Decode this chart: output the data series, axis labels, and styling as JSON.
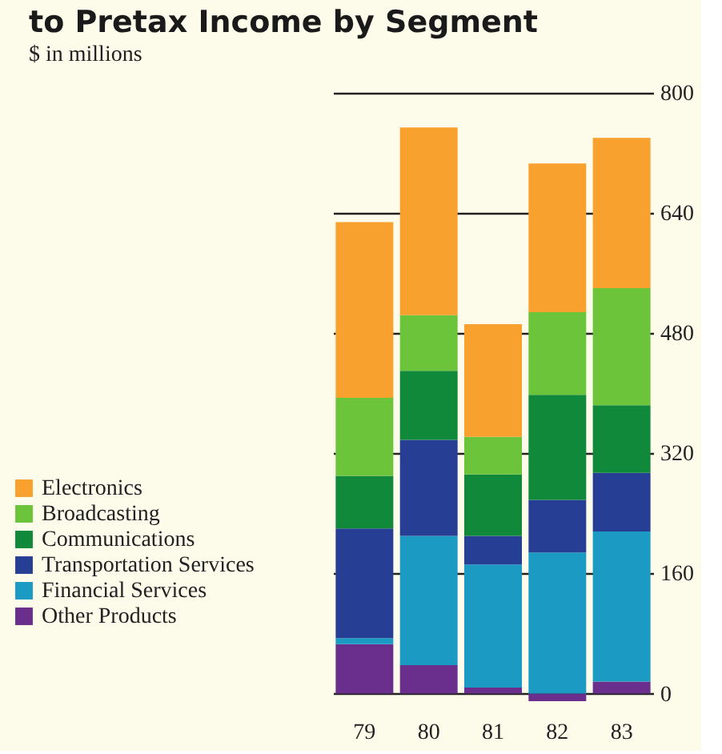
{
  "chart_data": {
    "type": "bar",
    "stacked": true,
    "title": "to Pretax Income by Segment",
    "subtitle": "$ in millions",
    "categories": [
      "79",
      "80",
      "81",
      "82",
      "83"
    ],
    "series": [
      {
        "name": "Other Products",
        "color": "#6a2e8c",
        "values": [
          66,
          38,
          8,
          -10,
          16
        ]
      },
      {
        "name": "Financial Services",
        "color": "#1b9ac4",
        "values": [
          8,
          172,
          164,
          188,
          200
        ]
      },
      {
        "name": "Transportation Services",
        "color": "#263f94",
        "values": [
          146,
          128,
          38,
          70,
          78
        ]
      },
      {
        "name": "Communications",
        "color": "#11893a",
        "values": [
          70,
          92,
          82,
          140,
          90
        ]
      },
      {
        "name": "Broadcasting",
        "color": "#6cc43a",
        "values": [
          104,
          74,
          50,
          110,
          156
        ]
      },
      {
        "name": "Electronics",
        "color": "#f9a12e",
        "values": [
          234,
          250,
          150,
          198,
          200
        ]
      }
    ],
    "ylim": [
      -10,
      800
    ],
    "yticks": [
      0,
      160,
      320,
      480,
      640,
      800
    ],
    "grid": "y",
    "legend": "bottom left"
  }
}
